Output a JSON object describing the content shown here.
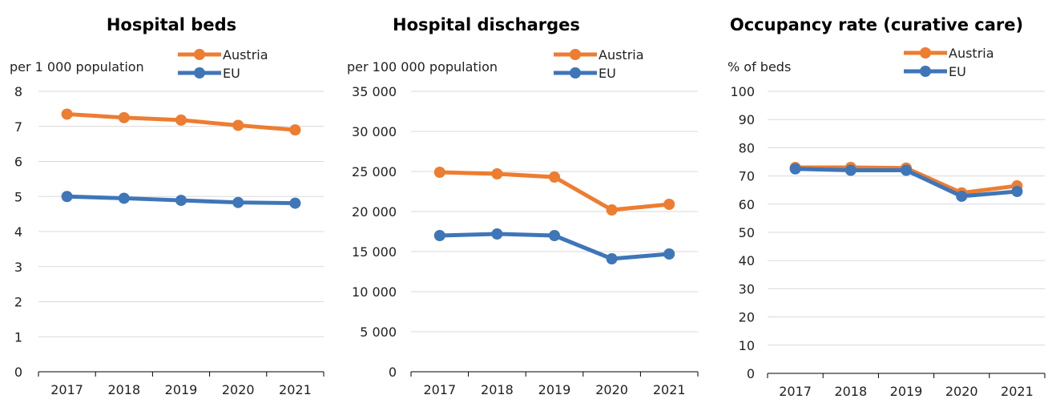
{
  "chart_data": [
    {
      "type": "line",
      "title": "Hospital beds",
      "ylabel": "per 1 000 population",
      "categories": [
        "2017",
        "2018",
        "2019",
        "2020",
        "2021"
      ],
      "ylim": [
        0,
        8
      ],
      "yticks": [
        "0",
        "1",
        "2",
        "3",
        "4",
        "5",
        "6",
        "7",
        "8"
      ],
      "legend_position": "top-right",
      "series": [
        {
          "name": "Austria",
          "color": "#ED7D31",
          "values": [
            7.35,
            7.25,
            7.18,
            7.03,
            6.9
          ]
        },
        {
          "name": "EU",
          "color": "#3E76B8",
          "values": [
            5.0,
            4.95,
            4.89,
            4.83,
            4.81
          ]
        }
      ]
    },
    {
      "type": "line",
      "title": "Hospital discharges",
      "ylabel": "per 100 000 population",
      "categories": [
        "2017",
        "2018",
        "2019",
        "2020",
        "2021"
      ],
      "ylim": [
        0,
        35000
      ],
      "yticks": [
        "0",
        "5 000",
        "10 000",
        "15 000",
        "20 000",
        "25 000",
        "30 000",
        "35 000"
      ],
      "legend_position": "top-right",
      "series": [
        {
          "name": "Austria",
          "color": "#ED7D31",
          "values": [
            24900,
            24700,
            24300,
            20200,
            20900
          ]
        },
        {
          "name": "EU",
          "color": "#3E76B8",
          "values": [
            17000,
            17200,
            17000,
            14100,
            14700
          ]
        }
      ]
    },
    {
      "type": "line",
      "title": "Occupancy rate (curative care)",
      "ylabel": "% of beds",
      "categories": [
        "2017",
        "2018",
        "2019",
        "2020",
        "2021"
      ],
      "ylim": [
        0,
        100
      ],
      "yticks": [
        "0",
        "10",
        "20",
        "30",
        "40",
        "50",
        "60",
        "70",
        "80",
        "90",
        "100"
      ],
      "legend_position": "top-right",
      "series": [
        {
          "name": "Austria",
          "color": "#ED7D31",
          "values": [
            73.0,
            73.0,
            72.8,
            64.0,
            66.5
          ]
        },
        {
          "name": "EU",
          "color": "#3E76B8",
          "values": [
            72.5,
            72.0,
            72.0,
            62.8,
            64.5
          ]
        }
      ]
    }
  ]
}
